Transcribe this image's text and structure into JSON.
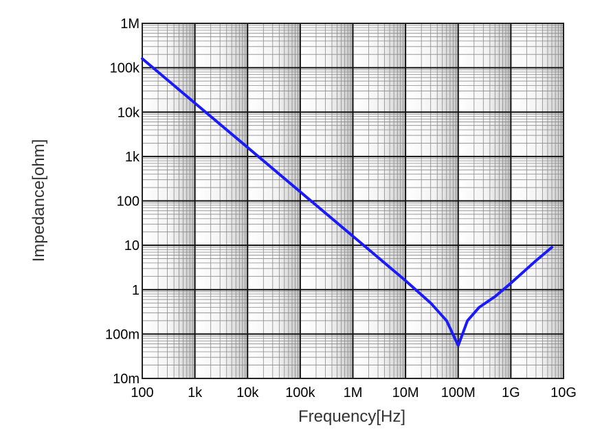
{
  "chart_data": {
    "type": "line",
    "title": "",
    "xlabel": "Frequency[Hz]",
    "ylabel": "Impedance[ohm]",
    "x_scale": "log",
    "y_scale": "log",
    "xlim": [
      100,
      10000000000
    ],
    "ylim": [
      0.01,
      1000000
    ],
    "x_ticks": [
      "100",
      "1k",
      "10k",
      "100k",
      "1M",
      "10M",
      "100M",
      "1G",
      "10G"
    ],
    "y_ticks": [
      "1M",
      "100k",
      "10k",
      "1k",
      "100",
      "10",
      "1",
      "100m",
      "10m"
    ],
    "grid": true,
    "legend": "none",
    "series": [
      {
        "color": "#1a1aff",
        "x": [
          100,
          1000,
          10000,
          100000,
          1000000,
          10000000,
          30000000,
          60000000,
          100000000,
          150000000,
          250000000,
          500000000,
          1000000000,
          3000000000,
          6000000000
        ],
        "y": [
          160000,
          16000,
          1600,
          160,
          16,
          1.6,
          0.5,
          0.2,
          0.055,
          0.2,
          0.4,
          0.7,
          1.4,
          4.5,
          9
        ]
      }
    ]
  }
}
